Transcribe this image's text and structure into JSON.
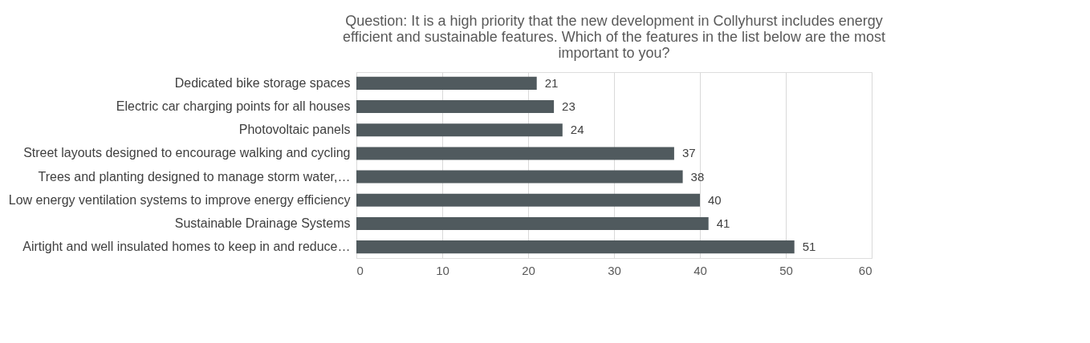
{
  "chart_data": {
    "type": "bar",
    "orientation": "horizontal",
    "title": "Question: It is a high priority that the new development in Collyhurst includes energy efficient and sustainable features. Which of the features in the list below are the most important to you?",
    "categories": [
      "Dedicated bike storage spaces",
      "Electric car charging points for all houses",
      "Photovoltaic panels",
      "Street layouts designed to encourage walking and cycling",
      "Trees and planting designed to manage storm water,…",
      "Low energy ventilation systems to improve energy efficiency",
      "Sustainable Drainage Systems",
      "Airtight and well insulated homes to keep in and reduce…"
    ],
    "values": [
      21,
      23,
      24,
      37,
      38,
      40,
      41,
      51
    ],
    "color": "#505a5e",
    "xlim": [
      0,
      60
    ],
    "xticks": [
      0,
      10,
      20,
      30,
      40,
      50,
      60
    ],
    "grid": "x",
    "data_labels": true
  }
}
